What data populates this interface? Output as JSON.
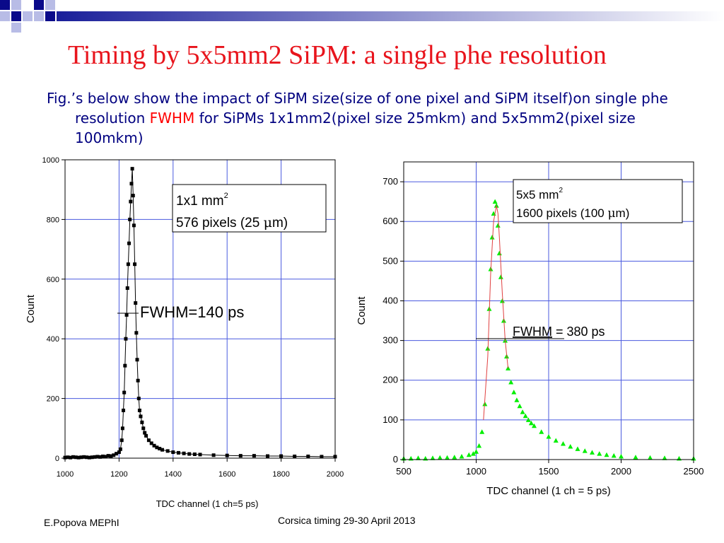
{
  "slide": {
    "title": "Timing by 5x5mm2 SiPM: a single phe resolution",
    "text_pre": "Fig.’s below show the impact of SiPM size(size of one pixel and SiPM itself)on single phe resolution ",
    "text_highlight": "FWHM",
    "text_post": " for SiPMs 1x1mm2(pixel size 25mkm) and 5x5mm2(pixel size 100mkm)",
    "footer_author": "E.Popova MEPhI",
    "footer_event": "Corsica timing 29-30 April 2013"
  },
  "colors": {
    "title": "#e8141c",
    "text": "#000080",
    "grid": "#4a5adf",
    "left_series": "#000000",
    "right_series": "#00ee00",
    "right_fit": "#e04040"
  },
  "chart_data": [
    {
      "type": "scatter",
      "ylabel": "Count",
      "xlabel": "TDC channel (1 ch=5 ps)",
      "xlim": [
        1000,
        2000
      ],
      "ylim": [
        0,
        1000
      ],
      "xticks": [
        1000,
        1200,
        1400,
        1600,
        1800,
        2000
      ],
      "yticks": [
        0,
        200,
        400,
        600,
        800,
        1000
      ],
      "grid": true,
      "legend_line1": "1x1 mm",
      "legend_sup": "2",
      "legend_line2_pre": "576 pixels (25 ",
      "legend_line2_mu": "μ",
      "legend_line2_post": "m)",
      "annotation": "FWHM=140 ps",
      "series": [
        {
          "x": [
            1000,
            1010,
            1020,
            1030,
            1040,
            1050,
            1060,
            1070,
            1080,
            1090,
            1100,
            1110,
            1120,
            1130,
            1140,
            1150,
            1160,
            1170,
            1180,
            1190,
            1200,
            1205,
            1210,
            1213,
            1216,
            1219,
            1222,
            1225,
            1228,
            1231,
            1234,
            1237,
            1240,
            1243,
            1246,
            1249,
            1252,
            1255,
            1258,
            1261,
            1264,
            1267,
            1270,
            1273,
            1276,
            1280,
            1285,
            1290,
            1295,
            1300,
            1310,
            1320,
            1330,
            1340,
            1350,
            1360,
            1380,
            1400,
            1420,
            1440,
            1460,
            1480,
            1500,
            1550,
            1600,
            1650,
            1700,
            1750,
            1800,
            1850,
            1900,
            1950,
            2000
          ],
          "y": [
            2,
            3,
            2,
            4,
            3,
            2,
            3,
            4,
            3,
            2,
            3,
            4,
            5,
            4,
            6,
            5,
            8,
            7,
            10,
            15,
            20,
            30,
            60,
            100,
            160,
            220,
            310,
            400,
            480,
            570,
            650,
            720,
            800,
            860,
            920,
            970,
            880,
            780,
            650,
            520,
            420,
            330,
            260,
            200,
            160,
            140,
            120,
            100,
            85,
            75,
            60,
            50,
            42,
            36,
            32,
            28,
            24,
            20,
            18,
            16,
            14,
            13,
            12,
            10,
            9,
            8,
            8,
            7,
            7,
            6,
            6,
            5,
            5
          ]
        }
      ]
    },
    {
      "type": "scatter",
      "ylabel": "Count",
      "xlabel": "TDC channel (1 ch = 5 ps)",
      "xlim": [
        500,
        2500
      ],
      "ylim": [
        0,
        750
      ],
      "xticks": [
        500,
        1000,
        1500,
        2000,
        2500
      ],
      "yticks": [
        0,
        100,
        200,
        300,
        400,
        500,
        600,
        700
      ],
      "grid": true,
      "legend_line1": "5x5 mm",
      "legend_sup": "2",
      "legend_line2_pre": "1600 pixels (100 ",
      "legend_line2_mu": "μ",
      "legend_line2_post": "m)",
      "annotation_underlined": "FWHM",
      "annotation_rest": " = 380 ps",
      "series": [
        {
          "x": [
            500,
            550,
            600,
            650,
            700,
            750,
            800,
            850,
            900,
            950,
            980,
            1000,
            1020,
            1040,
            1060,
            1080,
            1090,
            1100,
            1110,
            1120,
            1130,
            1140,
            1150,
            1160,
            1170,
            1180,
            1190,
            1200,
            1210,
            1220,
            1240,
            1260,
            1280,
            1300,
            1320,
            1340,
            1360,
            1380,
            1400,
            1450,
            1500,
            1550,
            1600,
            1650,
            1700,
            1750,
            1800,
            1850,
            1900,
            1950,
            2000,
            2100,
            2200,
            2300,
            2400,
            2500
          ],
          "y": [
            3,
            3,
            4,
            3,
            4,
            5,
            5,
            6,
            8,
            12,
            15,
            20,
            35,
            70,
            140,
            280,
            380,
            480,
            560,
            620,
            650,
            640,
            590,
            520,
            460,
            400,
            350,
            300,
            260,
            230,
            195,
            170,
            150,
            135,
            120,
            110,
            100,
            92,
            85,
            70,
            58,
            48,
            40,
            33,
            27,
            22,
            18,
            15,
            12,
            10,
            8,
            6,
            5,
            4,
            3,
            3
          ]
        }
      ]
    }
  ]
}
